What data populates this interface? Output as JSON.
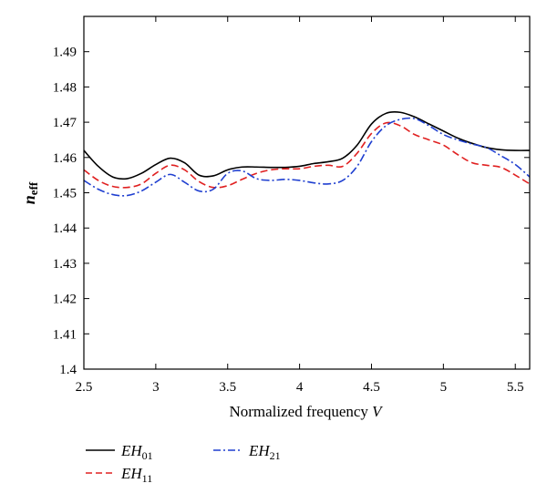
{
  "chart_data": {
    "type": "line",
    "title": "",
    "xlabel_text": "Normalized frequency ",
    "xlabel_var": "V",
    "ylabel_main": "n",
    "ylabel_sub": "eff",
    "xlim": [
      2.5,
      5.6
    ],
    "ylim": [
      1.4,
      1.5
    ],
    "xticks": [
      "2.5",
      "3",
      "3.5",
      "4",
      "4.5",
      "5",
      "5.5"
    ],
    "yticks": [
      "1.4",
      "1.41",
      "1.42",
      "1.43",
      "1.44",
      "1.45",
      "1.46",
      "1.47",
      "1.48",
      "1.49"
    ],
    "grid": false,
    "legend_position": "bottom-left, below plot",
    "x": [
      2.5,
      2.6,
      2.7,
      2.8,
      2.9,
      3.0,
      3.1,
      3.2,
      3.3,
      3.4,
      3.5,
      3.6,
      3.7,
      3.8,
      3.9,
      4.0,
      4.1,
      4.2,
      4.3,
      4.4,
      4.5,
      4.6,
      4.7,
      4.8,
      4.9,
      5.0,
      5.1,
      5.2,
      5.3,
      5.4,
      5.5,
      5.6
    ],
    "series": [
      {
        "name": "EH",
        "sub": "01",
        "color": "#000000",
        "dash": "solid",
        "values": [
          1.462,
          1.4575,
          1.4545,
          1.454,
          1.4555,
          1.458,
          1.4598,
          1.4585,
          1.455,
          1.4548,
          1.4565,
          1.4573,
          1.4573,
          1.4572,
          1.4572,
          1.4575,
          1.4583,
          1.4588,
          1.4598,
          1.4635,
          1.4695,
          1.4725,
          1.4728,
          1.4715,
          1.4695,
          1.4675,
          1.4655,
          1.464,
          1.4628,
          1.4622,
          1.462,
          1.462
        ]
      },
      {
        "name": "EH",
        "sub": "11",
        "color": "#e02020",
        "dash": "dashed",
        "values": [
          1.4565,
          1.4535,
          1.4518,
          1.4515,
          1.4525,
          1.4555,
          1.4578,
          1.4565,
          1.4532,
          1.4515,
          1.452,
          1.4538,
          1.4555,
          1.4565,
          1.4568,
          1.4568,
          1.4575,
          1.4578,
          1.4575,
          1.4612,
          1.4668,
          1.4698,
          1.469,
          1.4665,
          1.465,
          1.4635,
          1.4608,
          1.4585,
          1.4578,
          1.4572,
          1.455,
          1.4525
        ]
      },
      {
        "name": "EH",
        "sub": "21",
        "color": "#1f3fd0",
        "dash": "dashdot",
        "values": [
          1.4535,
          1.451,
          1.4495,
          1.4492,
          1.4505,
          1.453,
          1.4552,
          1.453,
          1.4505,
          1.451,
          1.4555,
          1.4562,
          1.454,
          1.4535,
          1.4538,
          1.4535,
          1.4528,
          1.4525,
          1.4535,
          1.4575,
          1.4645,
          1.469,
          1.4708,
          1.471,
          1.469,
          1.4665,
          1.465,
          1.4638,
          1.4628,
          1.4605,
          1.458,
          1.4545
        ]
      }
    ]
  }
}
